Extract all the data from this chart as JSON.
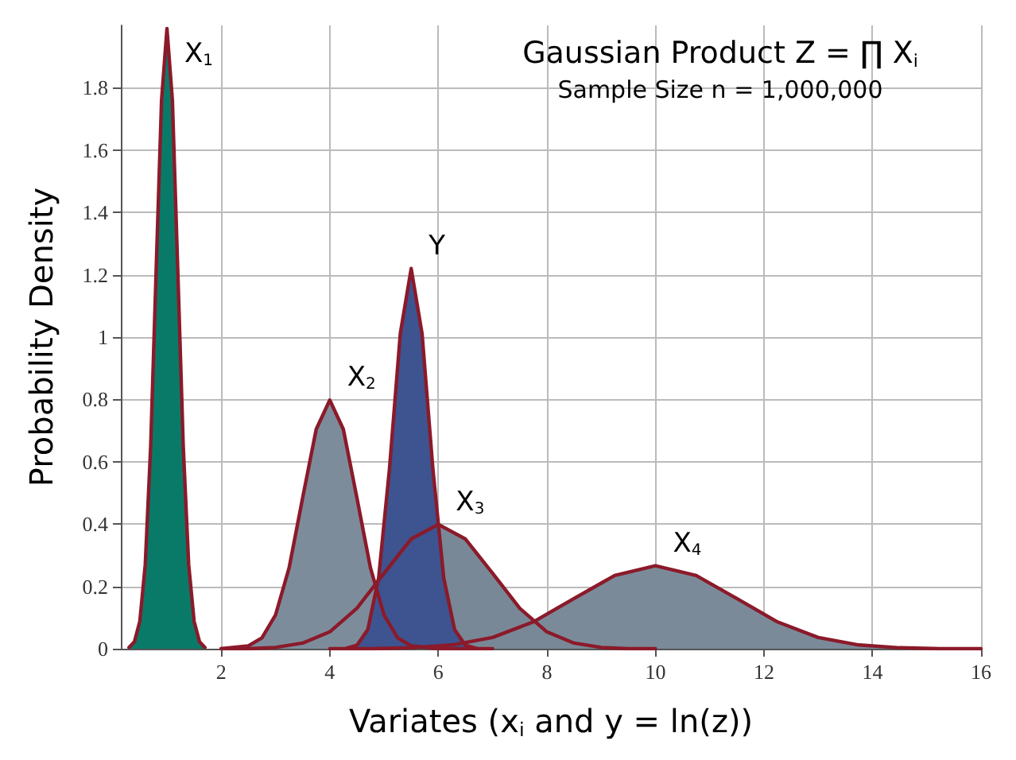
{
  "chart_data": {
    "type": "area",
    "title": "Gaussian Product Z = ∏ X$_{i}$",
    "subtitle": "Sample Size n = 1,000,000",
    "xlabel": "Variates (x$_{i}$ and y = ln(z))",
    "ylabel": "Probability Density",
    "xlim": [
      0.15,
      16
    ],
    "ylim": [
      0,
      2
    ],
    "xticks": [
      2,
      4,
      6,
      8,
      10,
      12,
      14,
      16
    ],
    "yticks": [
      0,
      0.2,
      0.4,
      0.6,
      0.8,
      1,
      1.2,
      1.4,
      1.6,
      1.8
    ],
    "grid": true,
    "marker": "none",
    "series": [
      {
        "name": "X$_{4}$",
        "color": "#7b8a99",
        "x": [
          4,
          4.75,
          5.5,
          6.25,
          7,
          7.75,
          8.5,
          9.25,
          10,
          10.75,
          11.5,
          12.25,
          13,
          13.75,
          14.5,
          15.25,
          16
        ],
        "values": [
          0,
          0,
          0.003,
          0.012,
          0.036,
          0.086,
          0.161,
          0.235,
          0.266,
          0.235,
          0.161,
          0.086,
          0.036,
          0.012,
          0.003,
          0,
          0
        ]
      },
      {
        "name": "X$_{3}$",
        "color": "#798897",
        "x": [
          2,
          2.5,
          3,
          3.5,
          4,
          4.5,
          5,
          5.5,
          6,
          6.5,
          7,
          7.5,
          8,
          8.5,
          9,
          9.5,
          10
        ],
        "values": [
          0,
          0,
          0.004,
          0.018,
          0.054,
          0.13,
          0.242,
          0.352,
          0.399,
          0.352,
          0.242,
          0.13,
          0.054,
          0.018,
          0.004,
          0,
          0
        ]
      },
      {
        "name": "X$_{2}$",
        "color": "#7d8c9b",
        "x": [
          2,
          2.5,
          2.75,
          3,
          3.25,
          3.5,
          3.75,
          4,
          4.25,
          4.5,
          4.75,
          5,
          5.25,
          5.5,
          6,
          7
        ],
        "values": [
          0,
          0.009,
          0.035,
          0.108,
          0.259,
          0.484,
          0.704,
          0.798,
          0.704,
          0.484,
          0.259,
          0.108,
          0.035,
          0.009,
          0,
          0
        ]
      },
      {
        "name": "Y",
        "color": "#3d5490",
        "x": [
          4.3,
          4.5,
          4.7,
          4.9,
          5.1,
          5.3,
          5.5,
          5.7,
          5.9,
          6.1,
          6.3,
          6.5,
          6.7
        ],
        "values": [
          0.001,
          0.011,
          0.061,
          0.227,
          0.577,
          1.012,
          1.22,
          1.012,
          0.577,
          0.227,
          0.061,
          0.011,
          0.001
        ]
      },
      {
        "name": "X$_{1}$",
        "color": "#0a7a68",
        "x": [
          0.3,
          0.4,
          0.5,
          0.6,
          0.7,
          0.8,
          0.9,
          1,
          1.1,
          1.2,
          1.3,
          1.4,
          1.5,
          1.6,
          1.7
        ],
        "values": [
          0.004,
          0.022,
          0.088,
          0.27,
          0.65,
          1.21,
          1.76,
          1.99,
          1.76,
          1.21,
          0.65,
          0.27,
          0.088,
          0.022,
          0.004
        ]
      }
    ]
  }
}
